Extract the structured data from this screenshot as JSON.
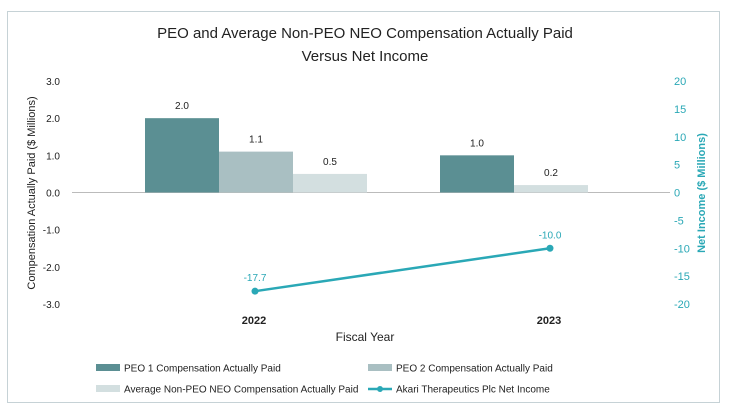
{
  "chart_data": {
    "type": "bar",
    "title": "PEO and Average Non-PEO NEO Compensation Actually Paid",
    "subtitle": "Versus Net Income",
    "xlabel": "Fiscal Year",
    "ylabel": "Compensation Actually Paid ($ Millions)",
    "y2label": "Net Income ($ Millions)",
    "categories": [
      "2022",
      "2023"
    ],
    "ylim": [
      -3.0,
      3.0
    ],
    "yticks": [
      "3.0",
      "2.0",
      "1.0",
      "0.0",
      "-1.0",
      "-2.0",
      "-3.0"
    ],
    "y2lim": [
      -20,
      20
    ],
    "y2ticks": [
      "20",
      "15",
      "10",
      "5",
      "0",
      "-5",
      "-10",
      "-15",
      "-20"
    ],
    "grid": false,
    "legend_position": "bottom",
    "series": [
      {
        "name": "PEO 1 Compensation Actually Paid",
        "kind": "bar",
        "axis": "left",
        "color": "#5b8f93",
        "values": [
          2.0,
          1.0
        ],
        "labels": [
          "2.0",
          "1.0"
        ]
      },
      {
        "name": "PEO 2 Compensation Actually Paid",
        "kind": "bar",
        "axis": "left",
        "color": "#a9bfc2",
        "values": [
          1.1,
          null
        ],
        "labels": [
          "1.1",
          ""
        ]
      },
      {
        "name": "Average Non-PEO NEO Compensation Actually Paid",
        "kind": "bar",
        "axis": "left",
        "color": "#d3dfe0",
        "values": [
          0.5,
          0.2
        ],
        "labels": [
          "0.5",
          "0.2"
        ]
      },
      {
        "name": "Akari Therapeutics Plc Net Income",
        "kind": "line",
        "axis": "right",
        "color": "#2aa8b6",
        "values": [
          -17.7,
          -10.0
        ],
        "labels": [
          "-17.7",
          "-10.0"
        ]
      }
    ]
  }
}
